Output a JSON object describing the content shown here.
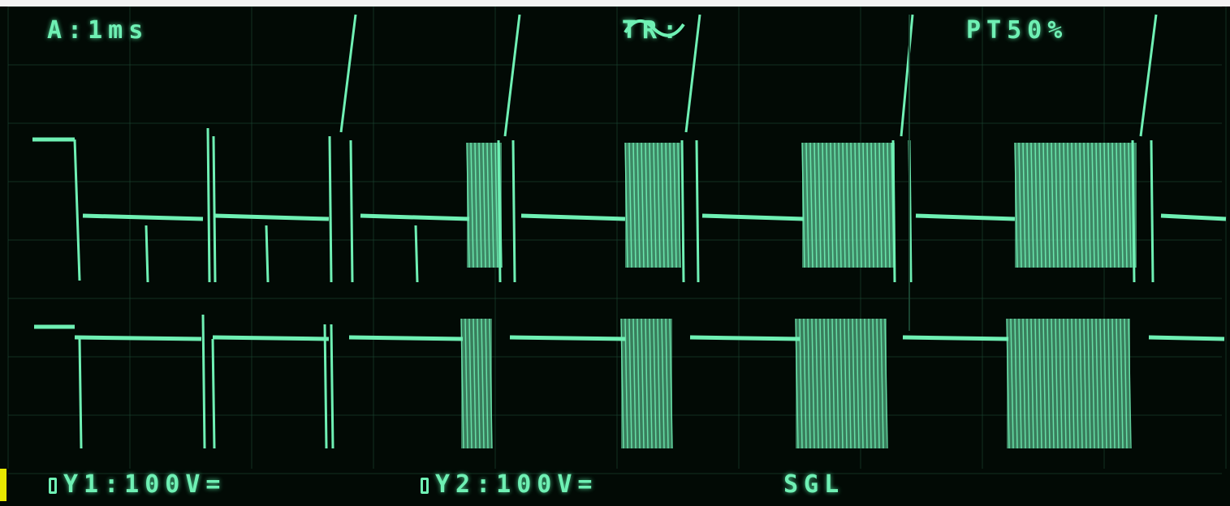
{
  "readouts": {
    "timebase": "A:1ms",
    "trigger": "TR:",
    "trigger_icon": "ac-sine-icon",
    "pretrigger": "PT50%",
    "ch1": "Y1:100V=",
    "ch2": "Y2:100V=",
    "mode": "SGL"
  },
  "colors": {
    "trace": "#6ff0b4",
    "grid": "#1c4a35",
    "background": "#020a05"
  }
}
